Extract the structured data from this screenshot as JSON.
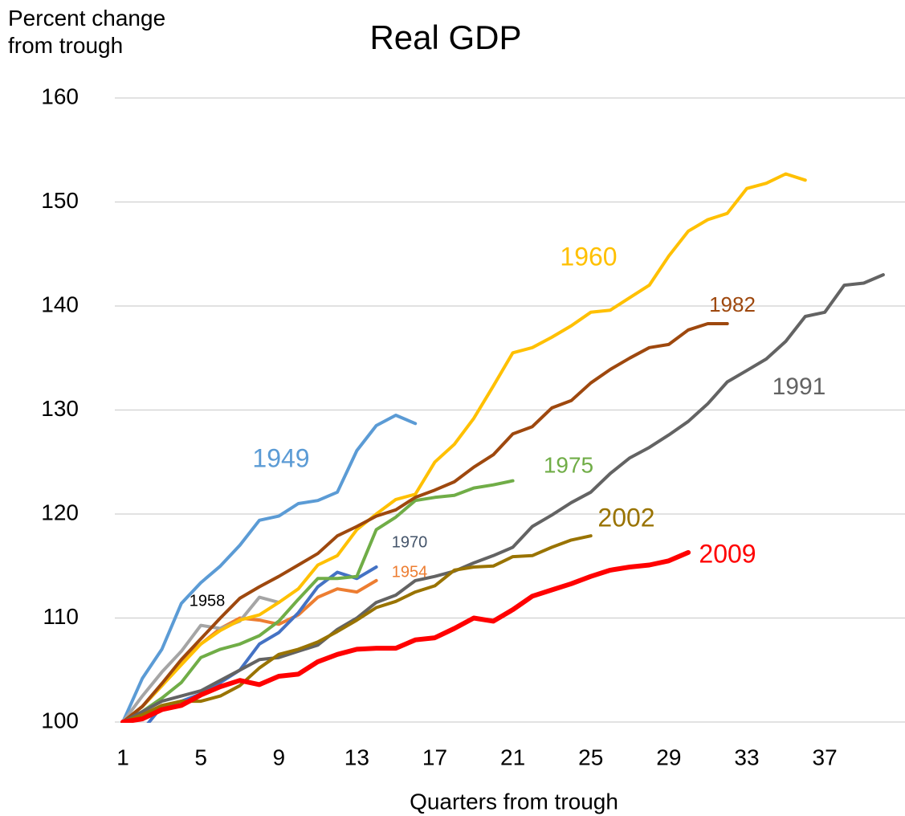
{
  "chart_data": {
    "type": "line",
    "title": "Real GDP",
    "ylabel": "Percent change from trough",
    "xlabel": "Quarters from trough",
    "xlim": [
      1,
      41
    ],
    "xticks": [
      1,
      5,
      9,
      13,
      17,
      21,
      25,
      29,
      33,
      37
    ],
    "ylim": [
      100,
      160
    ],
    "yticks": [
      100,
      110,
      120,
      130,
      140,
      150,
      160
    ],
    "grid": true,
    "series": [
      {
        "name": "1949",
        "color": "#5b9bd5",
        "values": [
          100,
          104.2,
          107,
          111.4,
          113.4,
          115,
          117,
          119.4,
          119.8,
          121,
          121.3,
          122.1,
          126.1,
          128.5,
          129.5,
          128.7
        ]
      },
      {
        "name": "1954",
        "color": "#ed7d31",
        "values": [
          100,
          101.5,
          103.5,
          105.8,
          107.5,
          109,
          110,
          109.8,
          109.4,
          110.3,
          112,
          112.8,
          112.5,
          113.6
        ]
      },
      {
        "name": "1958",
        "color": "#a5a5a5",
        "values": [
          100,
          102.5,
          104.8,
          106.8,
          109.3,
          109,
          109.7,
          112,
          111.5
        ]
      },
      {
        "name": "1960",
        "color": "#ffc000",
        "values": [
          100,
          101.5,
          103.5,
          105.5,
          107.5,
          108.8,
          109.8,
          110.3,
          111.5,
          112.8,
          115.1,
          116,
          118.5,
          120,
          121.4,
          121.9,
          125,
          126.7,
          129.2,
          132.3,
          135.5,
          136,
          137,
          138.1,
          139.4,
          139.6,
          140.8,
          142,
          144.8,
          147.2,
          148.3,
          148.9,
          151.3,
          151.8,
          152.7,
          152.1
        ]
      },
      {
        "name": "1970",
        "color": "#4472c4",
        "values": [
          100,
          99.2,
          101.5,
          102,
          102.7,
          103.8,
          105,
          107.5,
          108.6,
          110.5,
          113,
          114.4,
          113.8,
          114.9
        ]
      },
      {
        "name": "1975",
        "color": "#70ad47",
        "values": [
          100,
          101,
          102.3,
          103.8,
          106.2,
          107,
          107.5,
          108.3,
          109.7,
          111.8,
          113.8,
          113.8,
          114,
          118.5,
          119.7,
          121.3,
          121.6,
          121.8,
          122.5,
          122.8,
          123.2
        ]
      },
      {
        "name": "1982",
        "color": "#9e480e",
        "values": [
          100,
          101.5,
          103.7,
          106,
          108,
          110,
          111.9,
          113,
          114,
          115.1,
          116.2,
          117.9,
          118.8,
          119.8,
          120.4,
          121.6,
          122.3,
          123.1,
          124.5,
          125.7,
          127.7,
          128.4,
          130.2,
          130.9,
          132.6,
          133.9,
          135,
          136,
          136.3,
          137.7,
          138.3,
          138.3
        ]
      },
      {
        "name": "1991",
        "color": "#636363",
        "values": [
          100,
          101,
          102,
          102.5,
          103,
          104,
          105,
          106,
          106.2,
          106.8,
          107.4,
          108.9,
          110,
          111.5,
          112.2,
          113.6,
          114,
          114.5,
          115.3,
          116,
          116.8,
          118.8,
          119.9,
          121.1,
          122.1,
          123.9,
          125.4,
          126.4,
          127.6,
          128.9,
          130.6,
          132.7,
          133.8,
          134.9,
          136.6,
          139,
          139.4,
          142,
          142.2,
          143
        ]
      },
      {
        "name": "2002",
        "color": "#997300",
        "values": [
          100,
          100.7,
          101.6,
          102,
          102,
          102.5,
          103.5,
          105.2,
          106.5,
          107,
          107.7,
          108.7,
          109.8,
          111,
          111.6,
          112.5,
          113.1,
          114.6,
          114.9,
          115,
          115.9,
          116,
          116.8,
          117.5,
          117.9
        ]
      },
      {
        "name": "2009",
        "color": "#ff0000",
        "values": [
          100,
          100.3,
          101.2,
          101.6,
          102.6,
          103.4,
          104,
          103.6,
          104.4,
          104.6,
          105.8,
          106.5,
          107,
          107.1,
          107.1,
          107.9,
          108.1,
          109,
          110,
          109.7,
          110.8,
          112.1,
          112.7,
          113.3,
          114,
          114.6,
          114.9,
          115.1,
          115.5,
          116.3
        ]
      }
    ]
  }
}
